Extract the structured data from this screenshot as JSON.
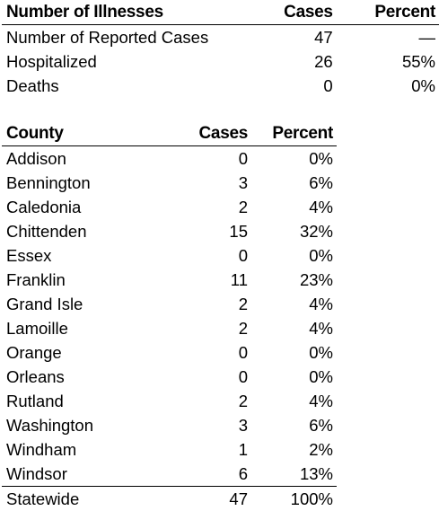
{
  "illness_table": {
    "headers": [
      "Number of Illnesses",
      "Cases",
      "Percent"
    ],
    "rows": [
      {
        "label": "Number of Reported Cases",
        "cases": "47",
        "percent": "—"
      },
      {
        "label": "Hospitalized",
        "cases": "26",
        "percent": "55%"
      },
      {
        "label": "Deaths",
        "cases": "0",
        "percent": "0%"
      }
    ]
  },
  "county_table": {
    "headers": [
      "County",
      "Cases",
      "Percent"
    ],
    "rows": [
      {
        "label": "Addison",
        "cases": "0",
        "percent": "0%"
      },
      {
        "label": "Bennington",
        "cases": "3",
        "percent": "6%"
      },
      {
        "label": "Caledonia",
        "cases": "2",
        "percent": "4%"
      },
      {
        "label": "Chittenden",
        "cases": "15",
        "percent": "32%"
      },
      {
        "label": "Essex",
        "cases": "0",
        "percent": "0%"
      },
      {
        "label": "Franklin",
        "cases": "11",
        "percent": "23%"
      },
      {
        "label": "Grand Isle",
        "cases": "2",
        "percent": "4%"
      },
      {
        "label": "Lamoille",
        "cases": "2",
        "percent": "4%"
      },
      {
        "label": "Orange",
        "cases": "0",
        "percent": "0%"
      },
      {
        "label": "Orleans",
        "cases": "0",
        "percent": "0%"
      },
      {
        "label": "Rutland",
        "cases": "2",
        "percent": "4%"
      },
      {
        "label": "Washington",
        "cases": "3",
        "percent": "6%"
      },
      {
        "label": "Windham",
        "cases": "1",
        "percent": "2%"
      },
      {
        "label": "Windsor",
        "cases": "6",
        "percent": "13%"
      }
    ],
    "total": {
      "label": "Statewide",
      "cases": "47",
      "percent": "100%"
    }
  }
}
